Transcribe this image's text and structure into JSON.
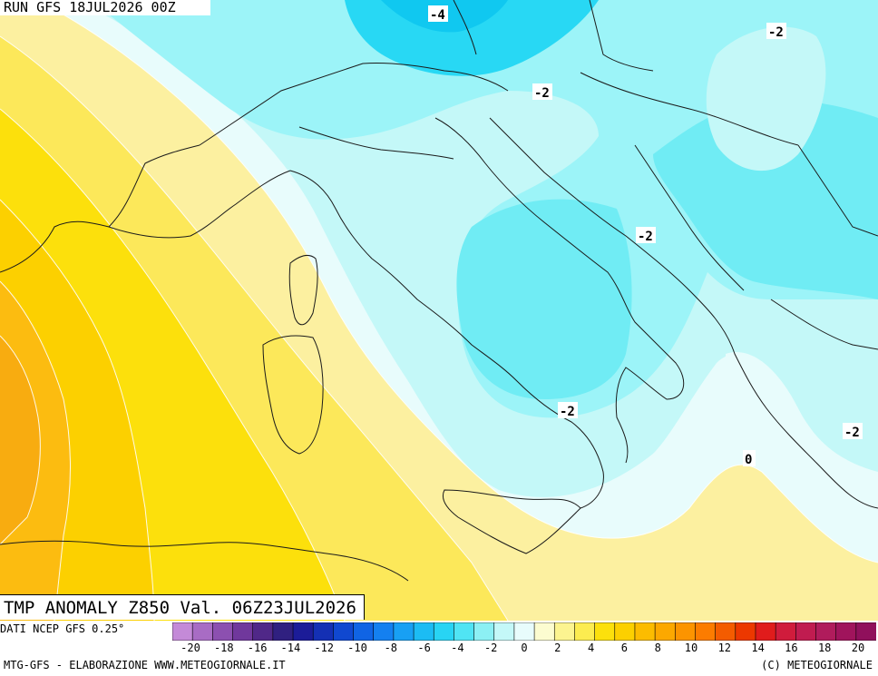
{
  "header": {
    "run": "RUN GFS 18JUL2026 00Z"
  },
  "title": {
    "text": "TMP ANOMALY Z850 Val. 06Z23JUL2026"
  },
  "source": {
    "text": "DATI NCEP GFS 0.25°"
  },
  "footer": {
    "left": "MTG-GFS - ELABORAZIONE WWW.METEOGIORNALE.IT",
    "right": "(C) METEOGIORNALE"
  },
  "contour_labels": [
    {
      "text": "-4"
    },
    {
      "text": "-2"
    },
    {
      "text": "-2"
    },
    {
      "text": "-2"
    },
    {
      "text": "-2"
    },
    {
      "text": "-2"
    },
    {
      "text": "0"
    }
  ],
  "colorbar": {
    "colors": [
      "#c48ad8",
      "#a86cc4",
      "#8c50b0",
      "#70389c",
      "#502888",
      "#302080",
      "#1c1c98",
      "#1430b4",
      "#1048d0",
      "#1064e4",
      "#1480f0",
      "#18a0f4",
      "#1cbcf4",
      "#28d4f4",
      "#50e4f4",
      "#8cf0f4",
      "#c4f8f8",
      "#e8fcfc",
      "#fcfcd0",
      "#fcf490",
      "#fcec50",
      "#fce00c",
      "#fcd000",
      "#fcbc00",
      "#fca800",
      "#fc9400",
      "#fc7c00",
      "#f45c00",
      "#ec3800",
      "#e01c1c",
      "#d01c3c",
      "#c01c50",
      "#b01c5c",
      "#a0145c",
      "#90105c"
    ],
    "labels": [
      "-20",
      "-18",
      "-16",
      "-14",
      "-12",
      "-10",
      "-8",
      "-6",
      "-4",
      "-2",
      "0",
      "2",
      "4",
      "6",
      "8",
      "10",
      "12",
      "14",
      "16",
      "18",
      "20"
    ]
  }
}
